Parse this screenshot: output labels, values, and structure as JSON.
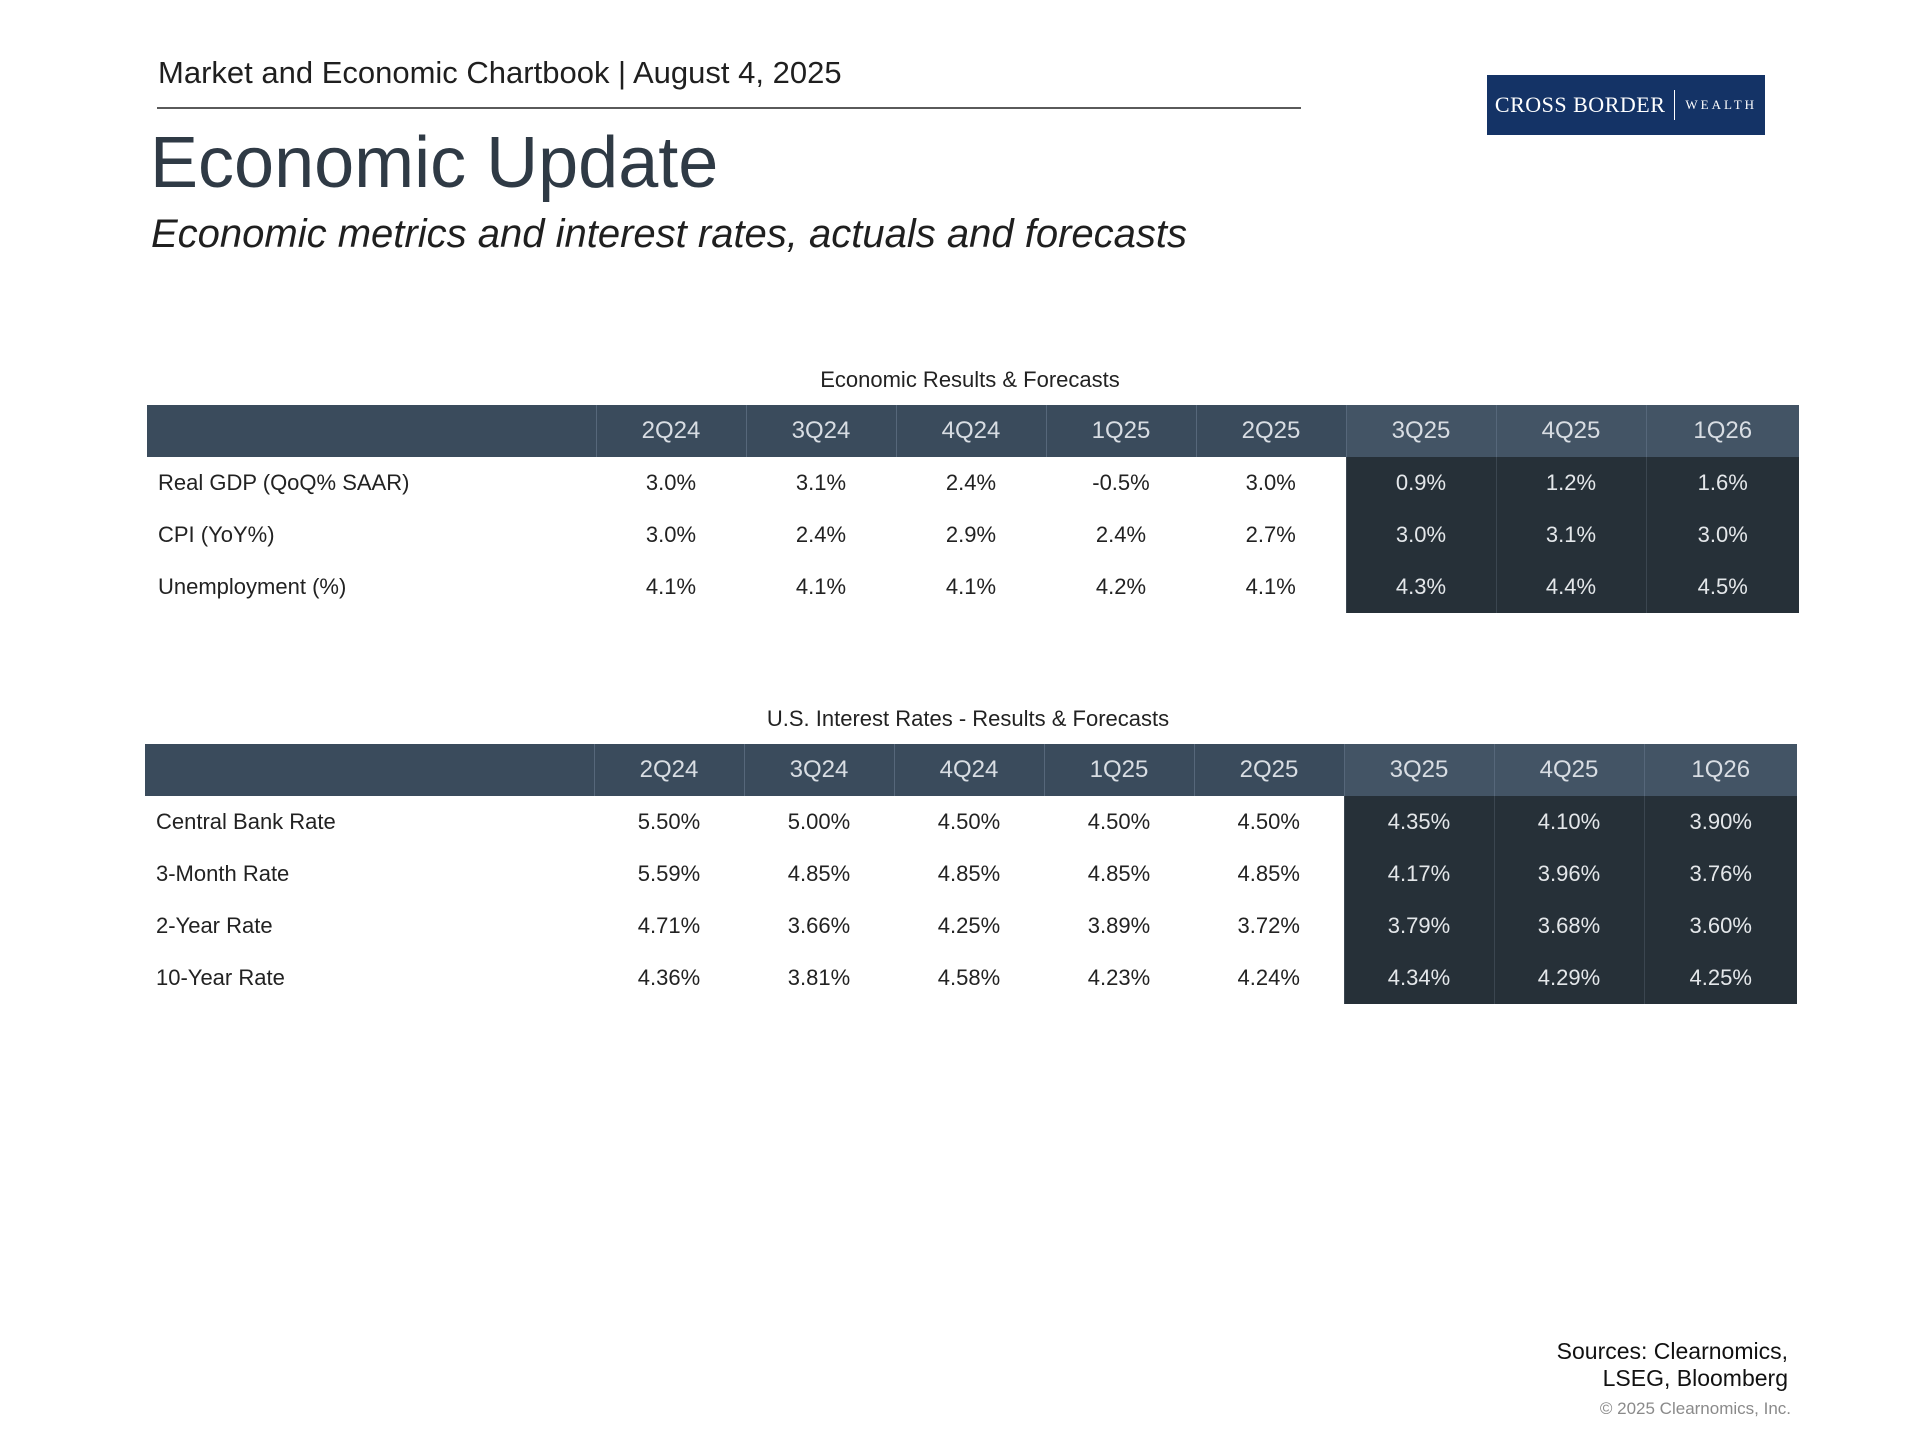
{
  "header": {
    "text": "Market and Economic Chartbook | August 4, 2025"
  },
  "logo": {
    "brand": "CROSS BORDER",
    "sub": "WEALTH"
  },
  "title": "Economic Update",
  "subtitle": "Economic metrics and interest rates, actuals and forecasts",
  "columns": [
    "2Q24",
    "3Q24",
    "4Q24",
    "1Q25",
    "2Q25",
    "3Q25",
    "4Q25",
    "1Q26"
  ],
  "economic_table": {
    "caption": "Economic Results & Forecasts",
    "rows": [
      {
        "label": "Real GDP (QoQ% SAAR)",
        "values": [
          "3.0%",
          "3.1%",
          "2.4%",
          "-0.5%",
          "3.0%",
          "0.9%",
          "1.2%",
          "1.6%"
        ]
      },
      {
        "label": "CPI (YoY%)",
        "values": [
          "3.0%",
          "2.4%",
          "2.9%",
          "2.4%",
          "2.7%",
          "3.0%",
          "3.1%",
          "3.0%"
        ]
      },
      {
        "label": "Unemployment (%)",
        "values": [
          "4.1%",
          "4.1%",
          "4.1%",
          "4.2%",
          "4.1%",
          "4.3%",
          "4.4%",
          "4.5%"
        ]
      }
    ]
  },
  "rates_table": {
    "caption": "U.S. Interest Rates - Results & Forecasts",
    "rows": [
      {
        "label": "Central Bank Rate",
        "values": [
          "5.50%",
          "5.00%",
          "4.50%",
          "4.50%",
          "4.50%",
          "4.35%",
          "4.10%",
          "3.90%"
        ]
      },
      {
        "label": "3-Month Rate",
        "values": [
          "5.59%",
          "4.85%",
          "4.85%",
          "4.85%",
          "4.85%",
          "4.17%",
          "3.96%",
          "3.76%"
        ]
      },
      {
        "label": "2-Year Rate",
        "values": [
          "4.71%",
          "3.66%",
          "4.25%",
          "3.89%",
          "3.72%",
          "3.79%",
          "3.68%",
          "3.60%"
        ]
      },
      {
        "label": "10-Year Rate",
        "values": [
          "4.36%",
          "3.81%",
          "4.58%",
          "4.23%",
          "4.24%",
          "4.34%",
          "4.29%",
          "4.25%"
        ]
      }
    ]
  },
  "sources": {
    "line1": "Sources: Clearnomics,",
    "line2": "LSEG, Bloomberg"
  },
  "copyright": "© 2025 Clearnomics, Inc.",
  "colors": {
    "header_bg": "#3a4b5c",
    "forecast_bg": "#263038",
    "logo_bg": "#143366"
  }
}
